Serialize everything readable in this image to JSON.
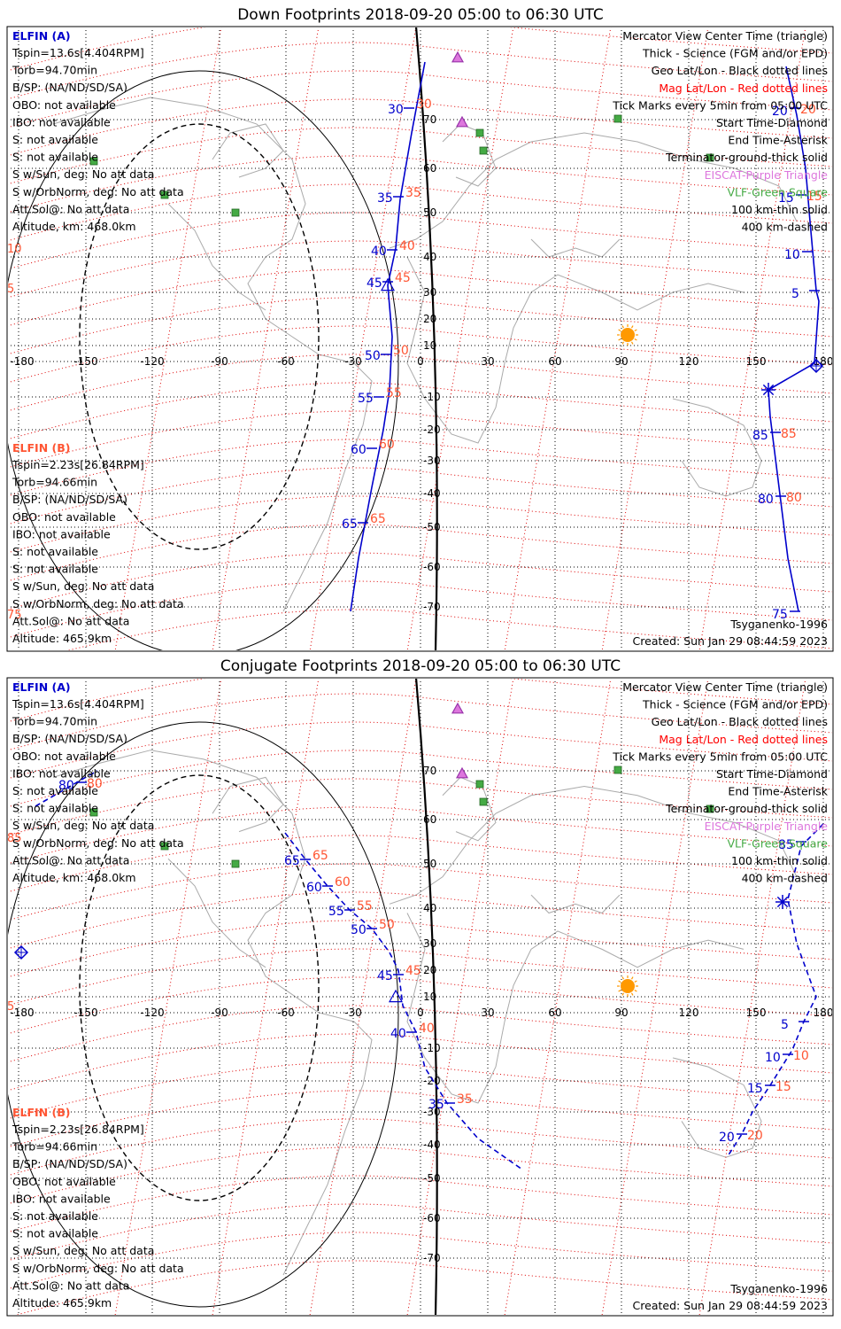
{
  "panels": [
    {
      "title": "Down Footprints 2018-09-20 05:00 to 06:30 UTC",
      "footprint": "down",
      "elfin_a": {
        "header": "ELFIN (A)",
        "lines": [
          "Tspin=13.6s[4.404RPM]",
          "Torb=94.70min",
          "B/SP: (NA/ND/SD/SA)",
          "OBO: not available",
          "IBO: not available",
          "S: not available",
          "S: not available",
          "S w/Sun, deg: No att data",
          "S w/OrbNorm, deg: No att data",
          "Att.Sol@: No att data",
          "Altitude, km: 468.0km"
        ]
      },
      "elfin_b": {
        "header": "ELFIN (B)",
        "lines": [
          "Tspin=2.23s[26.84RPM]",
          "Torb=94.66min",
          "B/SP: (NA/ND/SD/SA)",
          "OBO: not available",
          "IBO: not available",
          "S: not available",
          "S: not available",
          "S w/Sun, deg: No att data",
          "S w/OrbNorm, deg: No att data",
          "Att.Sol@: No att data",
          "Altitude: 465.9km"
        ]
      },
      "legend": [
        {
          "text": "Mercator View Center Time (triangle)",
          "color": "#000000"
        },
        {
          "text": "Thick - Science (FGM and/or EPD)",
          "color": "#000000"
        },
        {
          "text": "Geo Lat/Lon - Black dotted lines",
          "color": "#000000"
        },
        {
          "text": "Mag Lat/Lon - Red dotted lines",
          "color": "#ff0000"
        },
        {
          "text": "Tick Marks every 5min from 05:00 UTC",
          "color": "#000000"
        },
        {
          "text": "Start Time-Diamond",
          "color": "#000000"
        },
        {
          "text": "End Time-Asterisk",
          "color": "#000000"
        },
        {
          "text": "Terminator-ground-thick solid",
          "color": "#000000"
        },
        {
          "text": "EISCAT-Purple Triangle",
          "color": "#dd77dd"
        },
        {
          "text": "VLF-Green Square",
          "color": "#44aa44"
        },
        {
          "text": "100 km-thin solid",
          "color": "#000000"
        },
        {
          "text": "400 km-dashed",
          "color": "#000000"
        }
      ],
      "model": "Tsyganenko-1996",
      "created": "Created: Sun Jan 29 08:44:59 2023",
      "ticks_a": [
        {
          "blue": "30",
          "red": "30"
        },
        {
          "blue": "35",
          "red": "35"
        },
        {
          "blue": "40",
          "red": "40"
        },
        {
          "blue": "45",
          "red": "45"
        },
        {
          "blue": "50",
          "red": "50"
        },
        {
          "blue": "55",
          "red": "55"
        },
        {
          "blue": "60",
          "red": "60"
        },
        {
          "blue": "65",
          "red": "65"
        }
      ],
      "ticks_b": [
        {
          "blue": "20",
          "red": "20"
        },
        {
          "blue": "15",
          "red": "15"
        },
        {
          "blue": "10",
          "red": ""
        },
        {
          "blue": "5",
          "red": ""
        },
        {
          "blue": "85",
          "red": "85"
        },
        {
          "blue": "80",
          "red": "80"
        },
        {
          "blue": "75",
          "red": ""
        }
      ],
      "edge_labels": [
        "10",
        "5",
        "75"
      ]
    },
    {
      "title": "Conjugate Footprints 2018-09-20 05:00 to 06:30 UTC",
      "footprint": "conjugate",
      "elfin_a": {
        "header": "ELFIN (A)",
        "lines": [
          "Tspin=13.6s[4.404RPM]",
          "Torb=94.70min",
          "B/SP: (NA/ND/SD/SA)",
          "OBO: not available",
          "IBO: not available",
          "S: not available",
          "S: not available",
          "S w/Sun, deg: No att data",
          "S w/OrbNorm, deg: No att data",
          "Att.Sol@: No att data",
          "Altitude, km: 468.0km"
        ]
      },
      "elfin_b": {
        "header": "ELFIN (B)",
        "lines": [
          "Tspin=2.23s[26.84RPM]",
          "Torb=94.66min",
          "B/SP: (NA/ND/SD/SA)",
          "OBO: not available",
          "IBO: not available",
          "S: not available",
          "S: not available",
          "S w/Sun, deg: No att data",
          "S w/OrbNorm, deg: No att data",
          "Att.Sol@: No att data",
          "Altitude: 465.9km"
        ]
      },
      "legend": [
        {
          "text": "Mercator View Center Time (triangle)",
          "color": "#000000"
        },
        {
          "text": "Thick - Science (FGM and/or EPD)",
          "color": "#000000"
        },
        {
          "text": "Geo Lat/Lon - Black dotted lines",
          "color": "#000000"
        },
        {
          "text": "Mag Lat/Lon - Red dotted lines",
          "color": "#ff0000"
        },
        {
          "text": "Tick Marks every 5min from 05:00 UTC",
          "color": "#000000"
        },
        {
          "text": "Start Time-Diamond",
          "color": "#000000"
        },
        {
          "text": "End Time-Asterisk",
          "color": "#000000"
        },
        {
          "text": "Terminator-ground-thick solid",
          "color": "#000000"
        },
        {
          "text": "EISCAT-Purple Triangle",
          "color": "#dd77dd"
        },
        {
          "text": "VLF-Green Square",
          "color": "#44aa44"
        },
        {
          "text": "100 km-thin solid",
          "color": "#000000"
        },
        {
          "text": "400 km-dashed",
          "color": "#000000"
        }
      ],
      "model": "Tsyganenko-1996",
      "created": "Created: Sun Jan 29 08:44:59 2023",
      "ticks_a": [
        {
          "blue": "65",
          "red": "65"
        },
        {
          "blue": "60",
          "red": "60"
        },
        {
          "blue": "55",
          "red": "55"
        },
        {
          "blue": "50",
          "red": "50"
        },
        {
          "blue": "45",
          "red": "45"
        },
        {
          "blue": "40",
          "red": "40"
        },
        {
          "blue": "35",
          "red": "35"
        }
      ],
      "ticks_b": [
        {
          "blue": "80",
          "red": "80"
        },
        {
          "blue": "85",
          "red": ""
        },
        {
          "blue": "5",
          "red": ""
        },
        {
          "blue": "10",
          "red": "10"
        },
        {
          "blue": "15",
          "red": "15"
        },
        {
          "blue": "20",
          "red": "20"
        }
      ],
      "edge_labels": [
        "85",
        "5"
      ]
    }
  ],
  "map": {
    "lon_labels": [
      "-180",
      "-150",
      "-120",
      "-90",
      "-60",
      "-30",
      "0",
      "30",
      "60",
      "90",
      "120",
      "150",
      "180"
    ],
    "lat_labels": [
      "70",
      "60",
      "50",
      "40",
      "30",
      "20",
      "10",
      "-10",
      "-20",
      "-30",
      "-40",
      "-50",
      "-60",
      "-70"
    ]
  },
  "colors": {
    "elfin_a": "#0000cc",
    "elfin_b": "#ff5533",
    "mag_grid": "#dd0000",
    "geo_grid": "#000000",
    "eiscat": "#dd77dd",
    "vlf": "#44aa44",
    "sun": "#ff9900",
    "coast": "#aaaaaa"
  }
}
